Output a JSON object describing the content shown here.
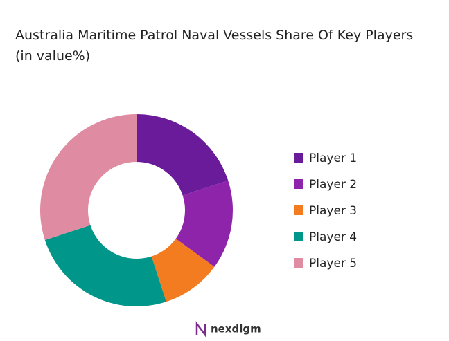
{
  "chart_data": {
    "type": "donut",
    "title": "Australia Maritime Patrol Naval Vessels Share Of Key Players (in value%)",
    "categories": [
      "Player 1",
      "Player 2",
      "Player 3",
      "Player 4",
      "Player 5"
    ],
    "values": [
      20,
      15,
      10,
      25,
      30
    ],
    "colors": [
      "#6a1b9a",
      "#8e24aa",
      "#f47c20",
      "#00968a",
      "#df8ba2"
    ],
    "legend": "right"
  },
  "brand": "nexdigm"
}
